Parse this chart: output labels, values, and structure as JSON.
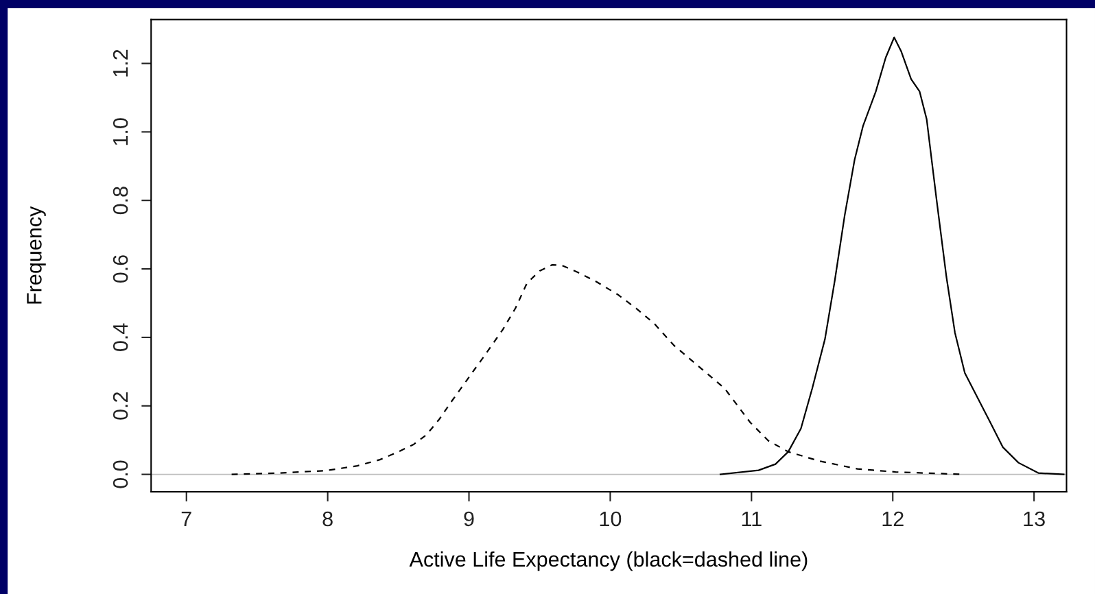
{
  "chart_data": {
    "type": "line",
    "xlabel": "Active Life Expectancy (black=dashed line)",
    "ylabel": "Frequency",
    "xlim": [
      6.75,
      13.23
    ],
    "ylim": [
      -0.051,
      1.328
    ],
    "xticks": [
      7,
      8,
      9,
      10,
      11,
      12,
      13
    ],
    "yticks": [
      {
        "value": 0,
        "label": "0.0"
      },
      0.2,
      0.4,
      0.6,
      0.8,
      {
        "value": 1,
        "label": "1.0"
      },
      1.2
    ],
    "grid": false,
    "marker": "none",
    "ref_lines": [
      {
        "axis": "y",
        "value": 0,
        "color": "#bebebe"
      }
    ],
    "series": [
      {
        "color": "#000000",
        "line_style": "dashed",
        "x": [
          7.32,
          7.66,
          7.99,
          8.21,
          8.37,
          8.5,
          8.61,
          8.7,
          8.79,
          8.88,
          8.99,
          9.1,
          9.24,
          9.33,
          9.41,
          9.5,
          9.59,
          9.66,
          9.77,
          9.9,
          10.05,
          10.18,
          10.31,
          10.45,
          10.63,
          10.81,
          10.99,
          11.12,
          11.26,
          11.48,
          11.75,
          12.02,
          12.49
        ],
        "values": [
          0,
          0.004,
          0.011,
          0.025,
          0.043,
          0.066,
          0.088,
          0.116,
          0.161,
          0.215,
          0.278,
          0.341,
          0.423,
          0.486,
          0.558,
          0.594,
          0.612,
          0.61,
          0.59,
          0.563,
          0.526,
          0.486,
          0.441,
          0.377,
          0.314,
          0.251,
          0.152,
          0.098,
          0.066,
          0.039,
          0.016,
          0.007,
          0
        ]
      },
      {
        "color": "#000000",
        "line_style": "solid",
        "x": [
          10.78,
          11.05,
          11.17,
          11.26,
          11.35,
          11.43,
          11.52,
          11.59,
          11.66,
          11.73,
          11.79,
          11.88,
          11.95,
          12.01,
          12.06,
          12.13,
          12.19,
          12.24,
          12.31,
          12.38,
          12.44,
          12.51,
          12.6,
          12.69,
          12.78,
          12.89,
          13.03,
          13.21
        ],
        "values": [
          0,
          0.012,
          0.03,
          0.066,
          0.134,
          0.251,
          0.395,
          0.567,
          0.757,
          0.919,
          1.018,
          1.118,
          1.217,
          1.276,
          1.235,
          1.154,
          1.118,
          1.037,
          0.802,
          0.576,
          0.414,
          0.296,
          0.224,
          0.152,
          0.079,
          0.034,
          0.004,
          0
        ]
      }
    ]
  }
}
